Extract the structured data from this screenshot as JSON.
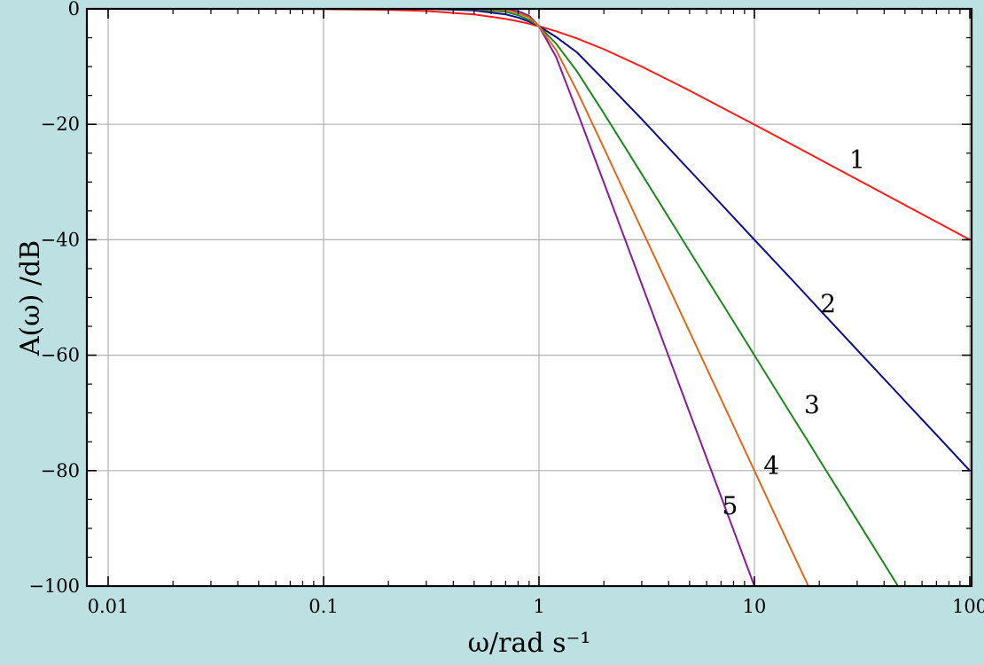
{
  "chart_data": {
    "type": "line",
    "title": "",
    "xlabel": "ω/rad s⁻¹",
    "ylabel": "A(ω) /dB",
    "x_scale": "log",
    "xlim": [
      0.01,
      100
    ],
    "ylim": [
      -100,
      0
    ],
    "grid": true,
    "legend": "none",
    "x_ticks": [
      {
        "value": 0.01,
        "label": "0.01"
      },
      {
        "value": 0.1,
        "label": "0.1"
      },
      {
        "value": 1,
        "label": "1"
      },
      {
        "value": 10,
        "label": "10"
      },
      {
        "value": 100,
        "label": "100"
      }
    ],
    "y_ticks": [
      {
        "value": 0,
        "label": "0"
      },
      {
        "value": -20,
        "label": "−20"
      },
      {
        "value": -40,
        "label": "−40"
      },
      {
        "value": -60,
        "label": "−60"
      },
      {
        "value": -80,
        "label": "−80"
      },
      {
        "value": -100,
        "label": "−100"
      }
    ],
    "x": [
      0.01,
      0.02,
      0.05,
      0.1,
      0.2,
      0.3,
      0.5,
      0.7,
      0.8,
      0.9,
      1,
      1.2,
      1.5,
      2,
      3,
      5,
      7,
      10,
      15,
      17.8,
      20,
      30,
      46.4,
      50,
      70,
      100
    ],
    "series": [
      {
        "label": "1",
        "color": "#ff1a1a",
        "label_at": [
          30,
          -26
        ],
        "values": [
          0,
          0,
          0,
          -0.04,
          -0.17,
          -0.37,
          -0.97,
          -1.73,
          -2.15,
          -2.58,
          -3.01,
          -3.87,
          -5.12,
          -6.99,
          -10,
          -14.15,
          -17.03,
          -20.04,
          -23.55,
          -25.03,
          -26.03,
          -29.55,
          -33.34,
          -33.98,
          -36.9,
          -40
        ]
      },
      {
        "label": "2",
        "color": "#0a0a8c",
        "label_at": [
          22,
          -51
        ],
        "values": [
          0,
          0,
          0,
          0,
          0,
          0,
          -0.26,
          -0.96,
          -1.51,
          -2.21,
          -3.01,
          -4.86,
          -7.52,
          -12.3,
          -19.1,
          -27.96,
          -33.8,
          -40,
          -47,
          -50,
          -52.04,
          -59.09,
          -66.66,
          -67.96,
          -73.8,
          -80
        ]
      },
      {
        "label": "3",
        "color": "#1a8a1a",
        "label_at": [
          18.5,
          -68.5
        ],
        "values": [
          0,
          0,
          0,
          0,
          0,
          0,
          -0.07,
          -0.51,
          -1.09,
          -1.93,
          -3.01,
          -6,
          -10.82,
          -18.1,
          -28.6,
          -41.95,
          -50.7,
          -60,
          -70.6,
          -75,
          -78.1,
          -88.6,
          -100,
          -100,
          -100,
          -100
        ]
      },
      {
        "label": "4",
        "color": "#e0681a",
        "label_at": [
          12,
          -79
        ]
      },
      {
        "label": "5",
        "color": "#8a1a9a",
        "label_at": [
          7.7,
          -86
        ],
        "values": [
          0,
          0,
          0,
          0,
          0,
          0,
          0,
          -0.1,
          -0.4,
          -1.2,
          -3.01,
          -8.3,
          -17.7,
          -30.1,
          -47.7,
          -69.9,
          -84.5,
          -100,
          -100,
          -100,
          -100,
          -100,
          -100,
          -100,
          -100,
          -100
        ]
      }
    ]
  }
}
